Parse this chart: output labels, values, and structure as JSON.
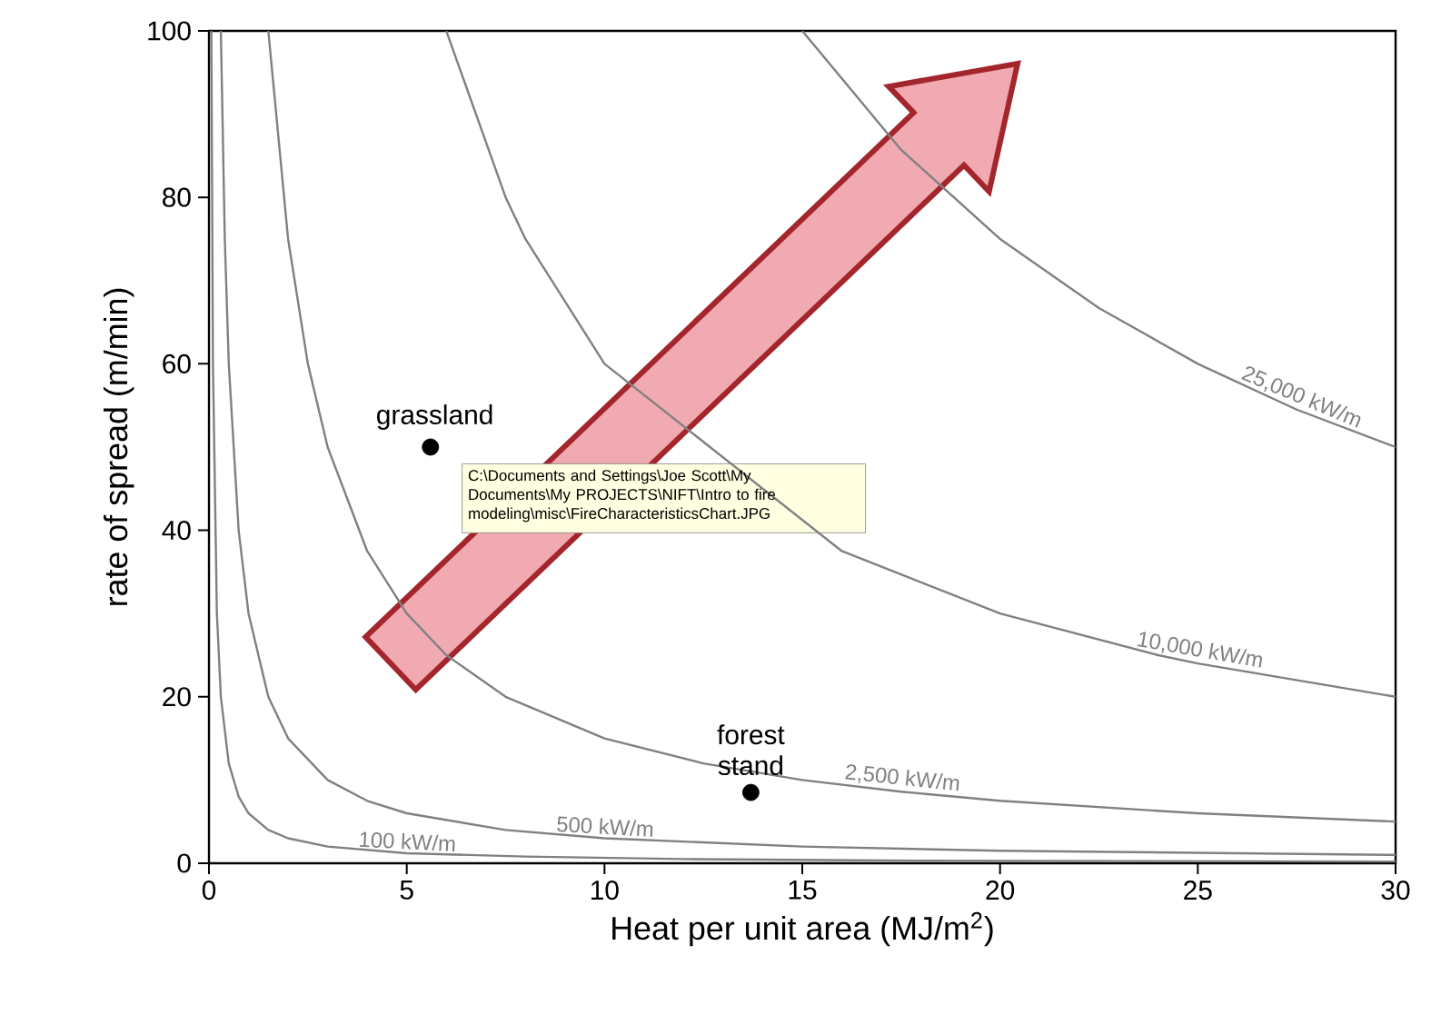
{
  "chart_data": {
    "type": "line",
    "xlabel": "Heat per unit area (MJ/m$^{2}$)",
    "ylabel": "rate of spread (m/min)",
    "xlim": [
      0,
      30
    ],
    "ylim": [
      0,
      100
    ],
    "xticks": [
      0,
      5,
      10,
      15,
      20,
      25,
      30
    ],
    "yticks": [
      0,
      20,
      40,
      60,
      80,
      100
    ],
    "grid": false,
    "legend": false,
    "marker": "none",
    "line_style": "solid",
    "series": [
      {
        "name": "100 kW/m",
        "color": "#808080",
        "x": [
          0.06,
          0.1,
          0.2,
          0.3,
          0.5,
          0.75,
          1,
          1.5,
          2,
          3,
          5,
          8,
          12,
          18,
          30
        ],
        "values": [
          100,
          60,
          30,
          20,
          12,
          8,
          6,
          4,
          3,
          2,
          1.2,
          0.8,
          0.5,
          0.3,
          0.2
        ]
      },
      {
        "name": "500 kW/m",
        "color": "#808080",
        "x": [
          0.3,
          0.4,
          0.5,
          0.75,
          1,
          1.5,
          2,
          3,
          4,
          5,
          7.5,
          10,
          15,
          20,
          30
        ],
        "values": [
          100,
          75,
          60,
          40,
          30,
          20,
          15,
          10,
          7.5,
          6,
          4,
          3,
          2,
          1.5,
          1
        ]
      },
      {
        "name": "2,500 kW/m",
        "color": "#808080",
        "x": [
          1.5,
          2,
          2.5,
          3,
          4,
          5,
          6,
          7.5,
          10,
          12.5,
          15,
          17.5,
          20,
          25,
          30
        ],
        "values": [
          100,
          75,
          60,
          50,
          37.5,
          30,
          25,
          20,
          15,
          12,
          10,
          8.6,
          7.5,
          6,
          5
        ]
      },
      {
        "name": "10,000 kW/m",
        "color": "#808080",
        "x": [
          6,
          7.5,
          8,
          10,
          16,
          20,
          24,
          25,
          30
        ],
        "values": [
          100,
          80,
          75,
          60,
          37.5,
          30,
          25,
          24,
          20
        ]
      },
      {
        "name": "25,000 kW/m",
        "color": "#808080",
        "x": [
          15,
          17.5,
          20,
          22.5,
          25,
          27.5,
          30
        ],
        "values": [
          100,
          85.7,
          75,
          66.7,
          60,
          54.5,
          50
        ]
      },
      {
        "type": "scatter",
        "marker": "circle",
        "color": "#000000",
        "x": [
          5.6,
          13.7
        ],
        "values": [
          50,
          8.5
        ]
      }
    ],
    "annotations": [
      {
        "text": "grassland",
        "x": 5.6,
        "y": 50
      },
      {
        "text": "forest stand",
        "x": 13.7,
        "y": 8.5
      },
      "C:\\Documents and Settings\\Joe Scott\\My Documents\\My PROJECTS\\NIFT\\Intro to fire modeling\\misc\\FireCharacteristicsChart.JPG"
    ]
  }
}
